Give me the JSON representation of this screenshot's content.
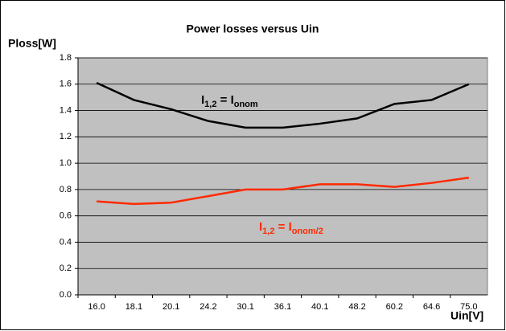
{
  "chart_data": {
    "type": "line",
    "title": "Power losses versus Uin",
    "ylabel": "Ploss[W]",
    "xlabel": "Uin[V]",
    "categories": [
      "16.0",
      "18.1",
      "20.1",
      "24.2",
      "30.1",
      "36.1",
      "40.1",
      "48.2",
      "60.2",
      "64.6",
      "75.0"
    ],
    "series": [
      {
        "color": "#000000",
        "values": [
          1.61,
          1.48,
          1.41,
          1.32,
          1.27,
          1.27,
          1.3,
          1.34,
          1.45,
          1.48,
          1.6
        ],
        "label_parts": [
          "I",
          "1,2",
          " = I",
          "onom"
        ]
      },
      {
        "color": "#ff2a00",
        "values": [
          0.71,
          0.69,
          0.7,
          0.75,
          0.8,
          0.8,
          0.84,
          0.84,
          0.82,
          0.85,
          0.89
        ],
        "label_parts": [
          "I",
          "1,2",
          " = I",
          "onom/2"
        ]
      }
    ],
    "ylim": [
      0,
      1.8
    ],
    "yticks": [
      {
        "value": 0,
        "label": "0.0"
      },
      0.2,
      0.4,
      0.6,
      0.8,
      {
        "value": 1,
        "label": "1.0"
      },
      1.2,
      1.4,
      1.6,
      1.8
    ],
    "grid": true,
    "background": "#c0c0c0"
  }
}
